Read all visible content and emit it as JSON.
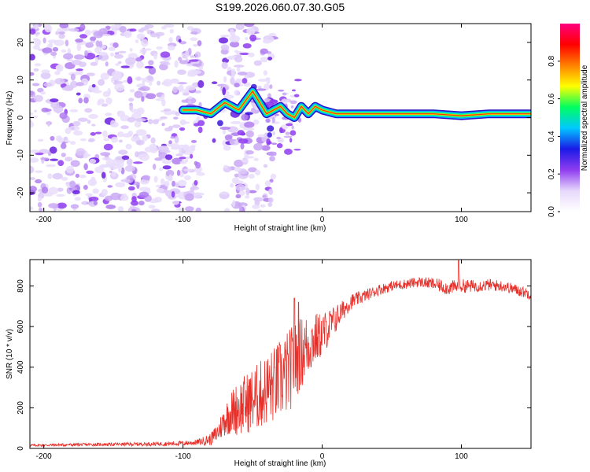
{
  "title": "S199.2026.060.07.30.G05",
  "chart_data": [
    {
      "type": "heatmap",
      "name": "spectrogram",
      "xlabel": "Height of straight line (km)",
      "ylabel": "Frequency (Hz)",
      "xlim": [
        -210,
        150
      ],
      "ylim": [
        -25,
        25
      ],
      "xticks": [
        -200,
        -100,
        0,
        100
      ],
      "yticks": [
        -20,
        -10,
        0,
        10,
        20
      ],
      "xtick_labels": [
        "-200",
        "-100",
        "0",
        "100"
      ],
      "ytick_labels": [
        "-20",
        "-10",
        "0",
        "10",
        "20"
      ],
      "colorbar": {
        "label": "Normalized spectral amplitude",
        "range": [
          0,
          1
        ],
        "ticks": [
          0.0,
          0.2,
          0.4,
          0.6,
          0.8
        ],
        "tick_labels": [
          "0.0",
          "0.2",
          "0.4",
          "0.6",
          "0.8"
        ],
        "colors": [
          "#ffffff",
          "#e6d8fb",
          "#8f3cf0",
          "#1a1ae6",
          "#00c8ff",
          "#00ff60",
          "#ffff00",
          "#ff8000",
          "#ff0000",
          "#ff0080"
        ]
      },
      "ridge": {
        "x": [
          -100,
          -90,
          -80,
          -70,
          -60,
          -50,
          -40,
          -30,
          -25,
          -20,
          -15,
          -10,
          -5,
          0,
          10,
          20,
          40,
          60,
          80,
          100,
          120,
          150
        ],
        "frequency": [
          2,
          2,
          1,
          4,
          2,
          7,
          1,
          3,
          1,
          0,
          3,
          1,
          3,
          2,
          1,
          1,
          1,
          1,
          1,
          0.5,
          1,
          1
        ]
      },
      "noise_regions": [
        [
          -210,
          -87
        ],
        [
          -72,
          -35
        ]
      ]
    },
    {
      "type": "line",
      "name": "snr",
      "xlabel": "Height of straight line (km)",
      "ylabel": "SNR (10 * v/v)",
      "xlim": [
        -210,
        150
      ],
      "ylim": [
        0,
        930
      ],
      "xticks": [
        -200,
        -100,
        0,
        100
      ],
      "yticks": [
        0,
        200,
        400,
        600,
        800
      ],
      "xtick_labels": [
        "-200",
        "-100",
        "0",
        "100"
      ],
      "ytick_labels": [
        "0",
        "200",
        "400",
        "600",
        "800"
      ],
      "series": [
        {
          "name": "SNR",
          "color": "#e8302a",
          "x": [
            -210,
            -180,
            -150,
            -120,
            -100,
            -90,
            -80,
            -75,
            -70,
            -65,
            -60,
            -55,
            -50,
            -45,
            -40,
            -35,
            -30,
            -25,
            -20,
            -15,
            -10,
            -5,
            0,
            5,
            10,
            15,
            20,
            30,
            40,
            50,
            60,
            70,
            80,
            90,
            100,
            110,
            120,
            130,
            140,
            150
          ],
          "y": [
            15,
            18,
            20,
            22,
            25,
            30,
            45,
            80,
            140,
            180,
            200,
            220,
            240,
            260,
            290,
            310,
            340,
            370,
            420,
            470,
            510,
            540,
            560,
            600,
            640,
            680,
            720,
            750,
            780,
            800,
            810,
            820,
            810,
            790,
            800,
            800,
            805,
            800,
            780,
            760
          ],
          "noise": [
            6,
            8,
            8,
            10,
            12,
            14,
            30,
            50,
            80,
            110,
            140,
            150,
            160,
            170,
            180,
            190,
            200,
            210,
            200,
            180,
            160,
            130,
            110,
            90,
            70,
            50,
            40,
            30,
            28,
            25,
            25,
            25,
            30,
            35,
            35,
            30,
            30,
            28,
            28,
            28
          ],
          "spikes": [
            {
              "x": -20,
              "y": 740
            },
            {
              "x": -17,
              "y": 720
            },
            {
              "x": 98,
              "y": 925
            }
          ]
        }
      ]
    }
  ]
}
